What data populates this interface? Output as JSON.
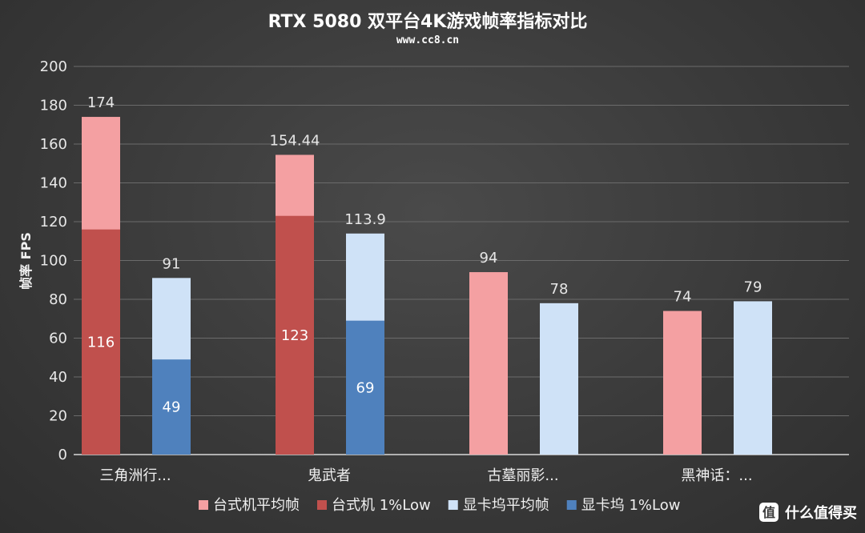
{
  "chart_data": {
    "type": "bar",
    "title": "RTX 5080 双平台4K游戏帧率指标对比",
    "subtitle": "www.cc8.cn",
    "ylabel": "帧率 FPS",
    "xlabel": "",
    "ylim": [
      0,
      200
    ],
    "yticks": [
      0,
      20,
      40,
      60,
      80,
      100,
      120,
      140,
      160,
      180,
      200
    ],
    "grid": true,
    "legend_position": "bottom",
    "categories": [
      "三角洲行...",
      "鬼武者",
      "古墓丽影...",
      "黑神话：..."
    ],
    "series": [
      {
        "name": "台式机平均帧",
        "color": "#f4a0a2",
        "values": [
          174,
          154.44,
          94,
          74
        ],
        "labels": [
          "174",
          "154.44",
          "94",
          "74"
        ]
      },
      {
        "name": "台式机 1%Low",
        "color": "#c0504d",
        "values": [
          116,
          123,
          null,
          null
        ],
        "labels": [
          "116",
          "123",
          "",
          ""
        ]
      },
      {
        "name": "显卡坞平均帧",
        "color": "#cfe2f7",
        "values": [
          91,
          113.9,
          78,
          79
        ],
        "labels": [
          "91",
          "113.9",
          "78",
          "79"
        ]
      },
      {
        "name": "显卡坞 1%Low",
        "color": "#4f81bd",
        "values": [
          49,
          69,
          null,
          null
        ],
        "labels": [
          "49",
          "69",
          "",
          ""
        ]
      }
    ]
  },
  "watermark": {
    "text": "什么值得买",
    "icon": "smzdm-logo-icon"
  }
}
